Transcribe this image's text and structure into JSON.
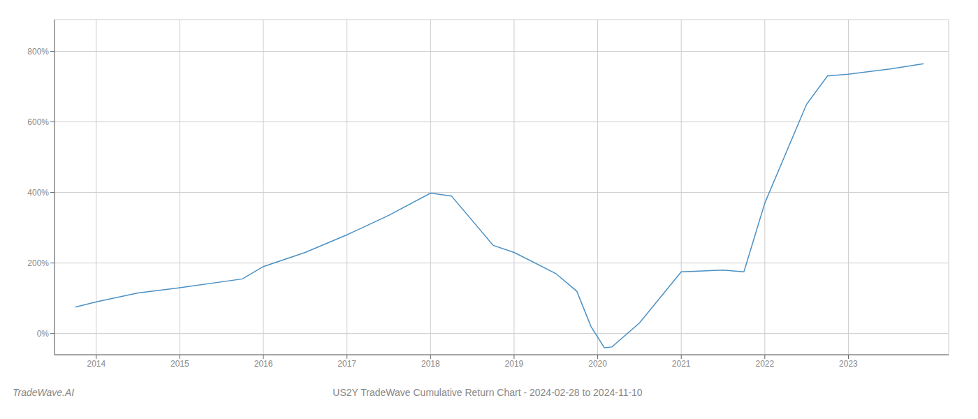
{
  "chart_data": {
    "type": "line",
    "title": "US2Y TradeWave Cumulative Return Chart - 2024-02-28 to 2024-11-10",
    "annotations": [
      "TradeWave.AI"
    ],
    "x": [
      2013.75,
      2014.0,
      2014.5,
      2015.0,
      2015.75,
      2016.0,
      2016.5,
      2017.0,
      2017.5,
      2018.0,
      2018.25,
      2018.75,
      2019.0,
      2019.5,
      2019.75,
      2019.92,
      2020.08,
      2020.17,
      2020.5,
      2021.0,
      2021.5,
      2021.75,
      2022.0,
      2022.5,
      2022.75,
      2023.0,
      2023.5,
      2023.9
    ],
    "values": [
      75,
      90,
      115,
      130,
      155,
      190,
      230,
      280,
      335,
      398,
      390,
      250,
      230,
      170,
      120,
      20,
      -40,
      -38,
      30,
      175,
      180,
      175,
      370,
      650,
      730,
      735,
      750,
      765
    ],
    "color": "#4a90c4",
    "xlim": [
      2013.5,
      2024.2
    ],
    "ylim": [
      -60,
      890
    ],
    "xticks": [
      2014,
      2015,
      2016,
      2017,
      2018,
      2019,
      2020,
      2021,
      2022,
      2023
    ],
    "yticks": [
      {
        "value": 0,
        "label": "0%"
      },
      {
        "value": 200,
        "label": "200%"
      },
      {
        "value": 400,
        "label": "400%"
      },
      {
        "value": 600,
        "label": "600%"
      },
      {
        "value": 800,
        "label": "800%"
      }
    ],
    "grid": true
  }
}
